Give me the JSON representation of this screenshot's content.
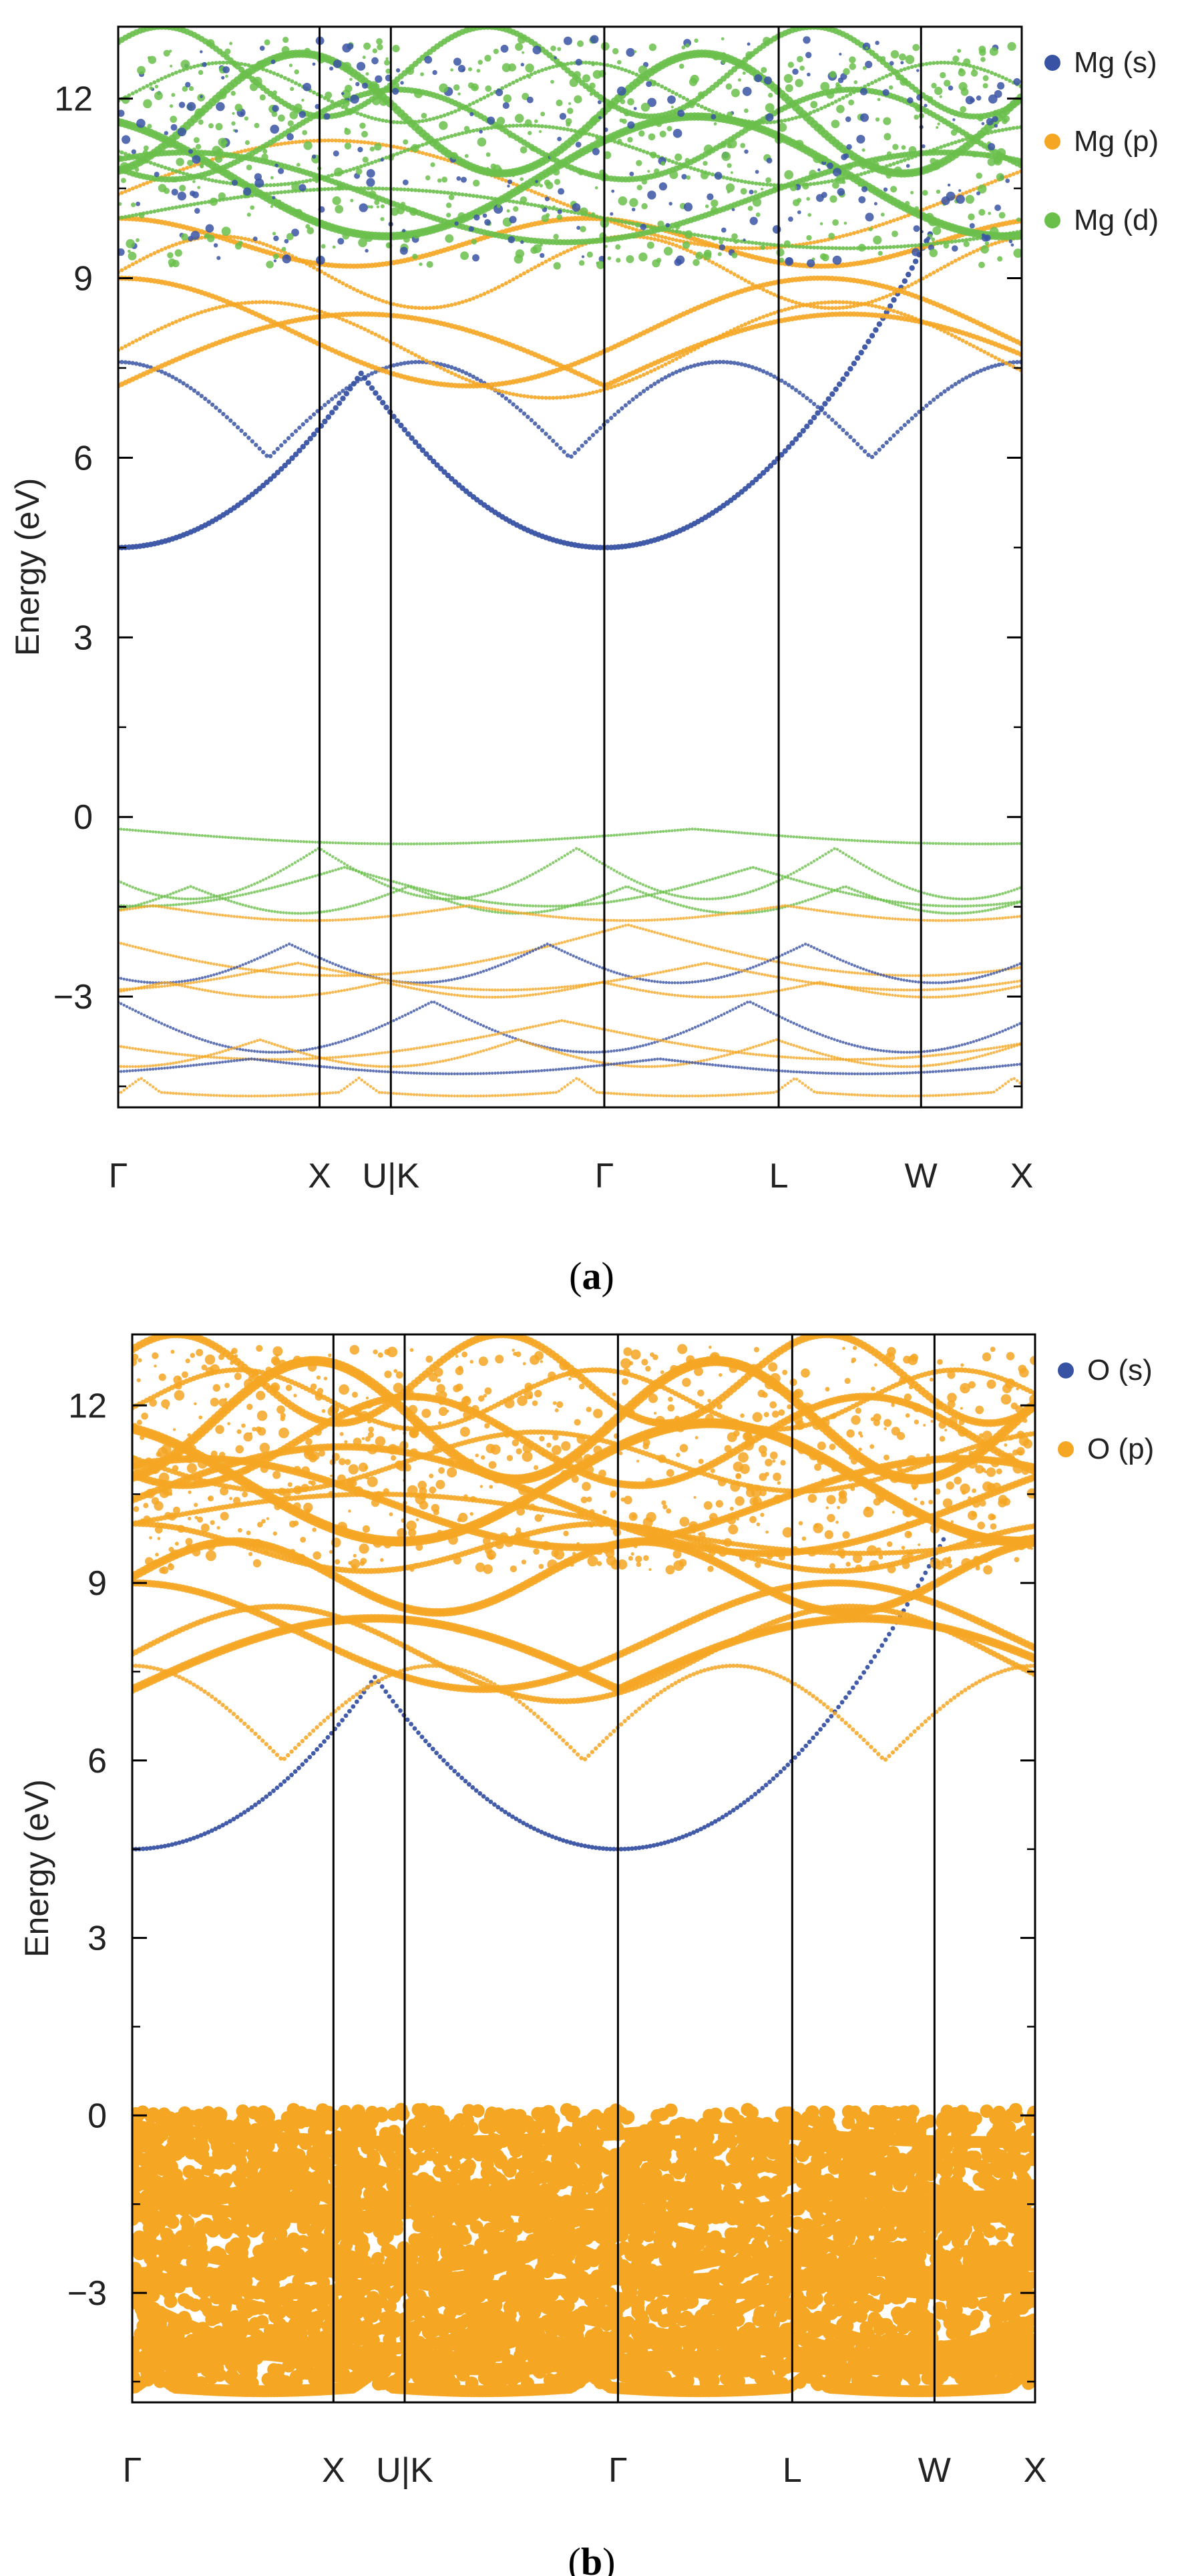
{
  "chart_data": [
    {
      "type": "scatter",
      "subtype": "projected-band-structure",
      "caption": "a",
      "ylabel": "Energy (eV)",
      "ylim": [
        -4.85,
        13.2
      ],
      "yticks": [
        12,
        9,
        6,
        3,
        0,
        -3
      ],
      "ytick_labels": [
        "12",
        "9",
        "6",
        "3",
        "0",
        "−3"
      ],
      "kpath": [
        {
          "label": "Γ",
          "k": 0.0
        },
        {
          "label": "X",
          "k": 1.0
        },
        {
          "label": "U|K",
          "k": 1.354
        },
        {
          "label": "Γ",
          "k": 2.414
        },
        {
          "label": "L",
          "k": 3.28
        },
        {
          "label": "W",
          "k": 3.987
        },
        {
          "label": "X",
          "k": 4.487
        }
      ],
      "legend": [
        {
          "name": "Mg (s)",
          "color": "#3953a4"
        },
        {
          "name": "Mg (p)",
          "color": "#f5a623"
        },
        {
          "name": "Mg (d)",
          "color": "#6abf4b"
        }
      ],
      "band_gap_ev": 4.5,
      "series": [
        {
          "name": "Mg (s)",
          "color": "#3953a4",
          "weight": "conduction band minimum at Γ (4.5 eV)"
        },
        {
          "name": "Mg (p)",
          "color": "#f5a623",
          "weight": "conduction bands 6–10 eV"
        },
        {
          "name": "Mg (d)",
          "color": "#6abf4b",
          "weight": "upper conduction bands 9–13 eV"
        }
      ]
    },
    {
      "type": "scatter",
      "subtype": "projected-band-structure",
      "caption": "b",
      "ylabel": "Energy (eV)",
      "ylim": [
        -4.85,
        13.2
      ],
      "yticks": [
        12,
        9,
        6,
        3,
        0,
        -3
      ],
      "ytick_labels": [
        "12",
        "9",
        "6",
        "3",
        "0",
        "−3"
      ],
      "kpath": [
        {
          "label": "Γ",
          "k": 0.0
        },
        {
          "label": "X",
          "k": 1.0
        },
        {
          "label": "U|K",
          "k": 1.354
        },
        {
          "label": "Γ",
          "k": 2.414
        },
        {
          "label": "L",
          "k": 3.28
        },
        {
          "label": "W",
          "k": 3.987
        },
        {
          "label": "X",
          "k": 4.487
        }
      ],
      "legend": [
        {
          "name": "O (s)",
          "color": "#3953a4"
        },
        {
          "name": "O (p)",
          "color": "#f5a623"
        }
      ],
      "band_gap_ev": 4.5,
      "series": [
        {
          "name": "O (s)",
          "color": "#3953a4",
          "weight": "weak, near conduction band minimum"
        },
        {
          "name": "O (p)",
          "color": "#f5a623",
          "weight": "dominant valence band 0 to −4.5 eV"
        }
      ]
    }
  ]
}
